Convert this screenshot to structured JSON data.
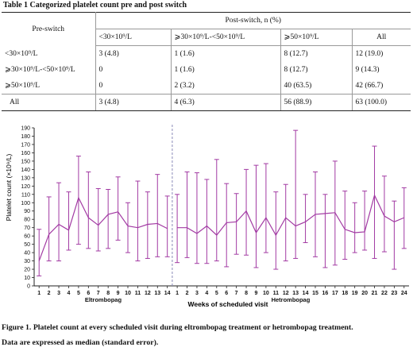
{
  "table": {
    "title": "Table 1 Categorized platelet count pre and post switch",
    "pre_header": "Pre-switch",
    "post_header": "Post-switch, n (%)",
    "columns": [
      "<30×10⁹/L",
      "⩾30×10⁹/L-<50×10⁹/L",
      "⩾50×10⁹/L",
      "All"
    ],
    "rows": [
      {
        "label": "<30×10⁹/L",
        "cells": [
          "3 (4.8)",
          "1 (1.6)",
          "8 (12.7)",
          "12 (19.0)"
        ]
      },
      {
        "label": "⩾30×10⁹/L-<50×10⁹/L",
        "cells": [
          "0",
          "1 (1.6)",
          "8 (12.7)",
          "9 (14.3)"
        ]
      },
      {
        "label": "⩾50×10⁹/L",
        "cells": [
          "0",
          "2 (3.2)",
          "40 (63.5)",
          "42 (66.7)"
        ]
      },
      {
        "label": "All",
        "cells": [
          "3 (4.8)",
          "4 (6.3)",
          "56 (88.9)",
          "63 (100.0)"
        ]
      }
    ]
  },
  "chart_data": {
    "type": "line",
    "ylabel": "Platelet count (×10⁹/L)",
    "xlabel": "Weeks of scheduled visit",
    "ylim": [
      0,
      190
    ],
    "yticks": [
      0,
      10,
      20,
      30,
      40,
      50,
      60,
      70,
      80,
      90,
      100,
      110,
      120,
      130,
      140,
      150,
      160,
      170,
      180,
      190
    ],
    "groups": [
      {
        "name": "Eltrombopag",
        "weeks": [
          "1",
          "2",
          "3",
          "4",
          "5",
          "6",
          "7",
          "8",
          "9",
          "10",
          "11",
          "12",
          "13",
          "14"
        ]
      },
      {
        "name": "Hetrombopag",
        "weeks": [
          "1",
          "2",
          "3",
          "4",
          "5",
          "6",
          "7",
          "8",
          "9",
          "10",
          "11",
          "12",
          "13",
          "14",
          "15",
          "16",
          "17",
          "18",
          "19",
          "20",
          "21",
          "22",
          "23",
          "24"
        ]
      }
    ],
    "series": [
      {
        "name": "Eltrombopag",
        "median": [
          30,
          62,
          74,
          67,
          106,
          82,
          73,
          86,
          89,
          72,
          70,
          74,
          75,
          69
        ],
        "lower": [
          12,
          30,
          30,
          43,
          50,
          45,
          42,
          45,
          55,
          40,
          30,
          33,
          35,
          35
        ],
        "upper": [
          68,
          107,
          124,
          113,
          156,
          137,
          117,
          116,
          131,
          100,
          126,
          113,
          134,
          108
        ]
      },
      {
        "name": "Hetrombopag",
        "median": [
          70,
          70,
          63,
          72,
          61,
          76,
          77,
          90,
          64,
          82,
          61,
          82,
          72,
          77,
          86,
          87,
          88,
          68,
          64,
          65,
          109,
          84,
          77,
          82
        ],
        "lower": [
          28,
          34,
          27,
          27,
          30,
          23,
          38,
          37,
          22,
          40,
          20,
          30,
          33,
          52,
          35,
          22,
          25,
          32,
          40,
          43,
          33,
          41,
          20,
          45
        ],
        "upper": [
          110,
          137,
          136,
          128,
          152,
          123,
          111,
          140,
          145,
          147,
          113,
          122,
          187,
          110,
          137,
          110,
          150,
          114,
          100,
          114,
          168,
          132,
          102,
          118
        ]
      }
    ],
    "line_color": "#a23aa3",
    "divider_color": "#8a8ab8"
  },
  "caption": {
    "line1": "Figure 1. Platelet count at every scheduled visit during eltrombopag treatment or hetrombopag treatment.",
    "line2": "Data are expressed as median (standard error)."
  }
}
